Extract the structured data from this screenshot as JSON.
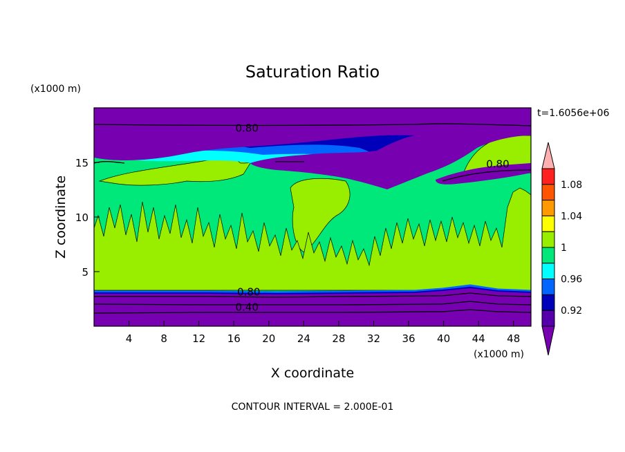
{
  "chart_data": {
    "type": "heatmap",
    "title": "Saturation Ratio",
    "xlabel": "X coordinate",
    "ylabel": "Z coordinate",
    "x_unit": "(x1000 m)",
    "y_unit": "(x1000 m)",
    "time_label": "t=1.6056e+06",
    "footer": "CONTOUR INTERVAL = 2.000E-01",
    "xlim": [
      0,
      50
    ],
    "ylim": [
      0,
      20
    ],
    "x_ticks": [
      4,
      8,
      12,
      16,
      20,
      24,
      28,
      32,
      36,
      40,
      44,
      48
    ],
    "y_ticks": [
      5,
      10,
      15
    ],
    "contour_labels": [
      {
        "text": "0.80",
        "x": 17.5,
        "y": 18.2
      },
      {
        "text": "0.80",
        "x": 46.2,
        "y": 14.9
      },
      {
        "text": "0.80",
        "x": 17.7,
        "y": 3.2
      },
      {
        "text": "0.40",
        "x": 17.5,
        "y": 1.8
      }
    ],
    "colorbar": {
      "colors": [
        "#ffb0b0",
        "#ff2020",
        "#ff5500",
        "#ff9900",
        "#ffff00",
        "#99ee00",
        "#00e87a",
        "#00ffff",
        "#0066ff",
        "#0000bb",
        "#5500aa",
        "#7700b0"
      ],
      "tick_labels": [
        "1.08",
        "1.04",
        "1",
        "0.96",
        "0.92"
      ],
      "tick_values": [
        1.08,
        1.04,
        1.0,
        0.96,
        0.92
      ]
    },
    "palette": {
      "purple": "#7700b0",
      "dark_blue": "#0000bb",
      "blue": "#0066ff",
      "cyan": "#00ffff",
      "green": "#00e87a",
      "yellow_green": "#99ee00"
    }
  }
}
